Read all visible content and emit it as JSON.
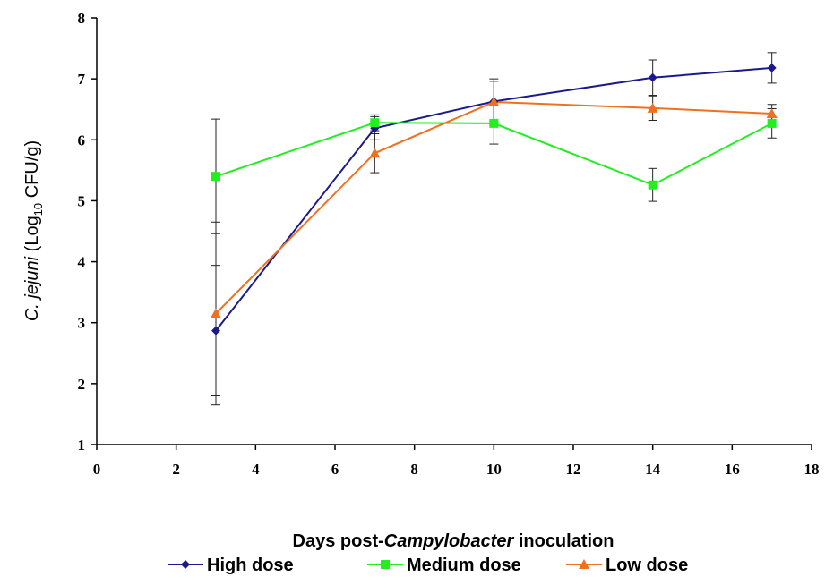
{
  "chart_data": {
    "type": "line",
    "xlabel": {
      "prefix": "Days post-",
      "italic": "Campylobacter",
      "suffix": " inoculation"
    },
    "ylabel": {
      "italic": "C. jejuni",
      "base": " (Log",
      "sub": "10",
      "unit": " CFU/g)"
    },
    "xlim": [
      0,
      18
    ],
    "ylim": [
      1,
      8
    ],
    "xticks": [
      "0",
      "2",
      "4",
      "6",
      "8",
      "10",
      "12",
      "14",
      "16",
      "18"
    ],
    "yticks": [
      "1",
      "2",
      "3",
      "4",
      "5",
      "6",
      "7",
      "8"
    ],
    "grid": false,
    "legend_position": "bottom",
    "x": [
      3,
      7,
      10,
      14,
      17
    ],
    "series": [
      {
        "name": "High dose",
        "color": "#1a1a8c",
        "marker": "diamond",
        "values": [
          2.87,
          6.19,
          6.63,
          7.02,
          7.18
        ],
        "errors": [
          1.07,
          0.19,
          0.33,
          0.29,
          0.25
        ]
      },
      {
        "name": "Medium dose",
        "color": "#22ee22",
        "marker": "square",
        "values": [
          5.4,
          6.28,
          6.27,
          5.26,
          6.27
        ],
        "errors": [
          0.94,
          0.13,
          0.34,
          0.27,
          0.24
        ]
      },
      {
        "name": "Low dose",
        "color": "#f07020",
        "marker": "triangle",
        "values": [
          3.15,
          5.78,
          6.62,
          6.52,
          6.43
        ],
        "errors": [
          1.5,
          0.32,
          0.38,
          0.2,
          0.15
        ]
      }
    ]
  }
}
